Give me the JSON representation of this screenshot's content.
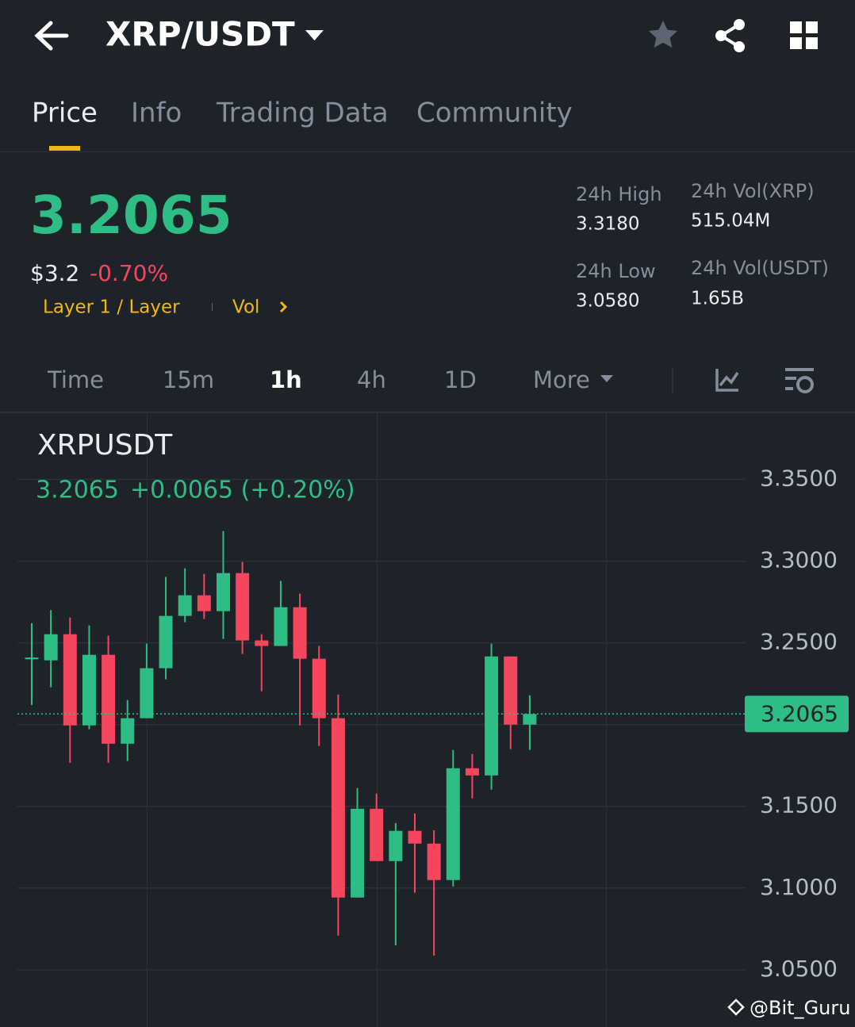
{
  "header": {
    "title": "XRP/USDT"
  },
  "tabs": [
    "Price",
    "Info",
    "Trading Data",
    "Community"
  ],
  "ticker": {
    "price": "3.2065",
    "fiat": "$3.2",
    "change": "-0.70%",
    "tag": "Layer 1 / Layer",
    "vol_link": "Vol"
  },
  "stats": [
    {
      "label": "24h High",
      "value": "3.3180"
    },
    {
      "label": "24h Low",
      "value": "3.0580"
    },
    {
      "label": "24h Vol(XRP)",
      "value": "515.04M"
    },
    {
      "label": "24h Vol(USDT)",
      "value": "1.65B"
    }
  ],
  "timeframes": [
    "Time",
    "15m",
    "1h",
    "4h",
    "1D",
    "More"
  ],
  "watermark": "@Bit_Guru",
  "chart_data": {
    "type": "candlestick",
    "title": "XRPUSDT",
    "last_price": {
      "value": 3.2065,
      "label": "3.2065"
    },
    "change": "+0.0065 (+0.20%)",
    "open": [
      3.24,
      3.2393,
      3.2553,
      3.1995,
      3.2427,
      3.1883,
      3.2039,
      3.2345,
      3.2665,
      3.2791,
      3.2694,
      3.2927,
      3.2515,
      3.2481,
      3.2718,
      3.2403,
      3.2039,
      3.0942,
      3.1485,
      3.1165,
      3.135,
      3.1272,
      3.1049,
      3.1733,
      3.1689,
      3.2417,
      3.2
    ],
    "high": [
      3.262,
      3.27,
      3.2655,
      3.2607,
      3.2544,
      3.215,
      3.2495,
      3.2903,
      3.2956,
      3.2922,
      3.3184,
      3.2995,
      3.2553,
      3.2879,
      3.2801,
      3.2481,
      3.2184,
      3.1612,
      3.1578,
      3.1398,
      3.1456,
      3.1354,
      3.1845,
      3.182,
      3.2495,
      3.2417,
      3.218
    ],
    "low": [
      3.212,
      3.2228,
      3.1767,
      3.1971,
      3.1767,
      3.1777,
      3.2039,
      3.2277,
      3.2626,
      3.2646,
      3.2524,
      3.2432,
      3.2204,
      3.2481,
      3.1995,
      3.1869,
      3.0709,
      3.0942,
      3.1165,
      3.065,
      3.0971,
      3.0587,
      3.101,
      3.1549,
      3.1602,
      3.185,
      3.1845
    ],
    "close": [
      3.241,
      3.2553,
      3.1995,
      3.2427,
      3.1883,
      3.2039,
      3.2345,
      3.2665,
      3.2791,
      3.2694,
      3.2927,
      3.2515,
      3.2481,
      3.2718,
      3.2403,
      3.2039,
      3.0942,
      3.1485,
      3.1165,
      3.135,
      3.1272,
      3.1049,
      3.1733,
      3.1689,
      3.2417,
      3.2,
      3.2065
    ],
    "up_color": "#2ebd85",
    "down_color": "#f6465d",
    "ylim": [
      3.015,
      3.391
    ],
    "yticks": [
      {
        "value": 3.05,
        "label": "3.0500"
      },
      {
        "value": 3.1,
        "label": "3.1000"
      },
      {
        "value": 3.15,
        "label": "3.1500"
      },
      {
        "value": 3.2,
        "label": "3.2000"
      },
      {
        "value": 3.25,
        "label": "3.2500"
      },
      {
        "value": 3.3,
        "label": "3.3000"
      },
      {
        "value": 3.35,
        "label": "3.3500"
      }
    ],
    "grid": true
  }
}
